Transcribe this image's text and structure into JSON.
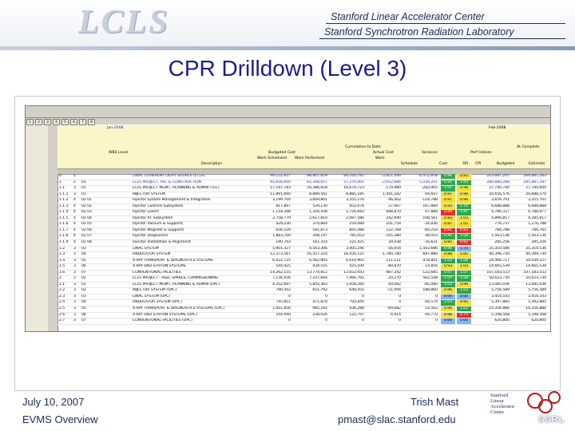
{
  "header": {
    "logo_text": "LCLS",
    "institution_line1": "Stanford Linear Accelerator Center",
    "institution_line2": "Stanford Synchrotron Radiation Laboratory"
  },
  "slide": {
    "title": "CPR Drilldown (Level 3)"
  },
  "spreadsheet": {
    "outline_levels": [
      "1",
      "2",
      "3",
      "4",
      "5",
      "6",
      "7",
      "8"
    ],
    "top_labels": {
      "cumulative_to_date": "Cumulative to Date",
      "at_complete": "At Complete",
      "wbs_level": "WBS Level",
      "description": "Description",
      "budgeted_cost": "Budgeted Cost",
      "actual_cost": "Actual Cost",
      "variance": "Variance",
      "perf_indices": "Perf Indices",
      "work_scheduled": "Work Scheduled",
      "work_performed": "Work Performed",
      "work": "Work",
      "schedule": "Schedule",
      "cost": "Cost",
      "spi": "SPI",
      "cpi": "CPI",
      "budgeted": "Budgeted",
      "estimate": "Estimate",
      "variance_at_complete": "Variance",
      "date_a": "Jan-2008",
      "date_b": "Feb-2008"
    },
    "rows": [
      {
        "num": "0",
        "lvl": "1",
        "wbs": "",
        "desc": "LINAC COHERENT LIGHT SOURCE (LCLS)",
        "bcws": "99,152,927",
        "bcwp": "88,807,859",
        "acwp": "89,316,785",
        "sv": "-3,821,496",
        "cv": "-6,472,858",
        "spi": "0.96",
        "cpi": "0.93",
        "bac": "263,887,207",
        "eac": "269,887,283",
        "kind": "blue",
        "c1": "g",
        "c2": "y"
      },
      {
        "num": "1",
        "lvl": "2",
        "wbs": "01",
        "desc": "LCLS PROJECT, PEC & CONSTRUCTION",
        "bcws": "65,656,640",
        "bcwp": "62,308,657",
        "acwp": "57,270,005",
        "sv": "-2,652,686",
        "cv": "5,030,201",
        "spi": "0.94",
        "cpi": "1.09",
        "bac": "280,880,288",
        "eac": "285,887,287",
        "kind": "blue",
        "c1": "g",
        "c2": "g"
      },
      {
        "num": "1.1",
        "lvl": "3",
        "wbs": "01",
        "desc": "LCLS PROJECT MGMT, PLANNING & ADMIN (TEC)",
        "bcws": "17,197,783",
        "bcwp": "16,386,818",
        "acwp": "16,670,723",
        "sv": "-179,989",
        "cv": "-283,905",
        "spi": "1.01",
        "cpi": "0.98",
        "bac": "27,740,740",
        "eac": "27,740,600",
        "kind": "plain",
        "c1": "g",
        "c2": "y"
      },
      {
        "num": "1.1.1",
        "lvl": "3",
        "wbs": "01",
        "desc": "INJECTOR SYSTEM",
        "bcws": "11,891,660",
        "bcwp": "8,889,561",
        "acwp": "8,885,185",
        "sv": "1,441,182",
        "cv": "64,607",
        "spi": "0.87",
        "cpi": "0.98",
        "bac": "20,656,576",
        "eac": "20,688,570",
        "kind": "plain",
        "c1": "y",
        "c2": "y"
      },
      {
        "num": "1.1.2",
        "lvl": "4",
        "wbs": "02 01",
        "desc": "Injector System Management & Integration",
        "bcws": "3,199,704",
        "bcwp": "3,069,801",
        "acwp": "3,355,576",
        "sv": "-46,402",
        "cv": "-118,788",
        "spi": "0.97",
        "cpi": "0.96",
        "bac": "3,659,701",
        "eac": "3,355,701",
        "kind": "plain",
        "c1": "y",
        "c2": "y"
      },
      {
        "num": "1.1.3",
        "lvl": "4",
        "wbs": "02 02",
        "desc": "Injector Controls Subsystem",
        "bcws": "817,897",
        "bcwp": "529,130",
        "acwp": "452,076",
        "sv": "27,067",
        "cv": "167,884",
        "spi": "0.93",
        "cpi": "1.35",
        "bac": "6,688,888",
        "eac": "6,688,888",
        "kind": "plain",
        "c1": "y",
        "c2": "g"
      },
      {
        "num": "1.1.4",
        "lvl": "4",
        "wbs": "02 03",
        "desc": "Injector Lasers",
        "bcws": "1,118,398",
        "bcwp": "1,316,438",
        "acwp": "1,726,683",
        "sv": "688,870",
        "cv": "67,888",
        "spi": "0.99",
        "cpi": "1.87",
        "bac": "4,786,327",
        "eac": "4,788,877",
        "kind": "plain",
        "c1": "rd",
        "c2": "g"
      },
      {
        "num": "1.1.5",
        "lvl": "4",
        "wbs": "02 04",
        "desc": "Injector RF Subsystem",
        "bcws": "2,758,779",
        "bcwp": "2,617,810",
        "acwp": "2,087,586",
        "sv": "242,690",
        "cv": "108,561",
        "spi": "0.83",
        "cpi": "1.03",
        "bac": "4,896,817",
        "eac": "4,285,817",
        "kind": "plain",
        "c1": "y",
        "c2": "y"
      },
      {
        "num": "1.1.6",
        "lvl": "4",
        "wbs": "02 05",
        "desc": "Injector Vacuum & Supports",
        "bcws": "429,230",
        "bcwp": "374,864",
        "acwp": "259,089",
        "sv": "101,754",
        "cv": "-34,836",
        "spi": "0.87",
        "cpi": "1.05",
        "bac": "776,737",
        "eac": "1,276,788",
        "kind": "plain",
        "c1": "y",
        "c2": "y"
      },
      {
        "num": "1.1.7",
        "lvl": "4",
        "wbs": "02 06",
        "desc": "Injector Magnets & Supports",
        "bcws": "656,529",
        "bcwp": "581,873",
        "acwp": "841,088",
        "sv": "122,768",
        "cv": "-60,218",
        "spi": "0.81",
        "cpi": "0.83",
        "bac": "784,788",
        "eac": "784,765",
        "kind": "plain",
        "c1": "rd",
        "c2": "rd"
      },
      {
        "num": "1.1.8",
        "lvl": "4",
        "wbs": "02 07",
        "desc": "Injector Diagnostics",
        "bcws": "1,883,700",
        "bcwp": "208,197",
        "acwp": "785,053",
        "sv": "-105,380",
        "cv": "-38,010",
        "spi": "0.90",
        "cpi": "1.08",
        "bac": "1,563,136",
        "eac": "1,563,136",
        "kind": "plain",
        "c1": "g",
        "c2": "g"
      },
      {
        "num": "1.1.9",
        "lvl": "4",
        "wbs": "02 08",
        "desc": "Injector Installation & Alignment",
        "bcws": "190,793",
        "bcwp": "161,354",
        "acwp": "225,425",
        "sv": "29,438",
        "cv": "-35,631",
        "spi": "0.85",
        "cpi": "0.82",
        "bac": "285,256",
        "eac": "285,256",
        "kind": "plain",
        "c1": "y",
        "c2": "rd"
      },
      {
        "num": "1.2",
        "lvl": "3",
        "wbs": "03",
        "desc": "LINAC SYSTEM",
        "bcws": "5,901,327",
        "bcwp": "4,563,306",
        "acwp": "3,405,246",
        "sv": "-56,054",
        "cv": "1,563,686",
        "spi": "0.98",
        "cpi": "1.75",
        "bac": "25,310,586",
        "eac": "25,310,536",
        "kind": "plain",
        "c1": "g",
        "c2": "bl"
      },
      {
        "num": "1.3",
        "lvl": "3",
        "wbs": "04",
        "desc": "UNDULATOR SYSTEM",
        "bcws": "12,373,567",
        "bcwp": "16,557,214",
        "acwp": "16,430,125",
        "sv": "-1,780,780",
        "cv": "687,880",
        "spi": "0.88",
        "cpi": "1.05",
        "bac": "40,396,730",
        "eac": "40,399,730",
        "kind": "plain",
        "c1": "y",
        "c2": "y"
      },
      {
        "num": "1.4",
        "lvl": "3",
        "wbs": "05",
        "desc": "X-RAY TRANSPORT & DIAGNOSTICS SYSTEMS",
        "bcws": "6,422,725",
        "bcwp": "6,562,905",
        "acwp": "6,610,905",
        "sv": "111,111",
        "cv": "478,801",
        "spi": "1.02",
        "cpi": "1.08",
        "bac": "24,466,727",
        "eac": "24,439,227",
        "kind": "plain",
        "c1": "g",
        "c2": "g"
      },
      {
        "num": "1.5",
        "lvl": "3",
        "wbs": "06",
        "desc": "X-RAY END STATION SYSTEMS",
        "bcws": "544,425",
        "bcwp": "434,555",
        "acwp": "425,100",
        "sv": "-80,870",
        "cv": "14,856",
        "spi": "0.93",
        "cpi": "1.03",
        "bac": "14,665,539",
        "eac": "14,665,539",
        "kind": "plain",
        "c1": "y",
        "c2": "y"
      },
      {
        "num": "1.6",
        "lvl": "3",
        "wbs": "07",
        "desc": "CONVENTIONAL FACILITIES",
        "bcws": "14,262,155",
        "bcwp": "13,774,812",
        "acwp": "13,652,043",
        "sv": "-487,342",
        "cv": "122,685",
        "spi": "0.97",
        "cpi": "1.07",
        "bac": "107,183,553",
        "eac": "107,183,553",
        "kind": "plain",
        "c1": "g",
        "c2": "g"
      },
      {
        "num": "2",
        "lvl": "2",
        "wbs": "02",
        "desc": "LCLS PROJECT - R&D, SPARES, COMMISSIONING",
        "bcws": "7,156,056",
        "bcwp": "7,107,604",
        "acwp": "7,466,765",
        "sv": "20,270",
        "cv": "562,548",
        "spi": "1.00",
        "cpi": "1.08",
        "bac": "50,623,730",
        "eac": "50,623,730",
        "kind": "plain",
        "c1": "g",
        "c2": "g"
      },
      {
        "num": "2.1",
        "lvl": "3",
        "wbs": "01",
        "desc": "LCLS PROJECT MGMT, PLANNING & ADMIN (OPC)",
        "bcws": "4,352,697",
        "bcwp": "5,842,363",
        "acwp": "5,958,260",
        "sv": "60,082",
        "cv": "-85,080",
        "spi": "1.03",
        "cpi": "0.99",
        "bac": "13,085,036",
        "eac": "13,085,036",
        "kind": "plain",
        "c1": "g",
        "c2": "y"
      },
      {
        "num": "2.2",
        "lvl": "3",
        "wbs": "02",
        "desc": "INJECTOR SYSTEM (OPC)",
        "bcws": "790,502",
        "bcwp": "651,792",
        "acwp": "648,455",
        "sv": "-51,094",
        "cv": "188,860",
        "spi": "0.96",
        "cpi": "1.03",
        "bac": "5,756,589",
        "eac": "5,756,589",
        "kind": "plain",
        "c1": "y",
        "c2": "g"
      },
      {
        "num": "2.3",
        "lvl": "3",
        "wbs": "03",
        "desc": "LINAC SYSTEM (OPC)",
        "bcws": "0",
        "bcwp": "0",
        "acwp": "0",
        "sv": "0",
        "cv": "0",
        "spi": "0.00",
        "cpi": "0.00",
        "bac": "3,454,543",
        "eac": "3,454,543",
        "kind": "plain",
        "c1": "bl",
        "c2": "bl"
      },
      {
        "num": "2.4",
        "lvl": "3",
        "wbs": "04",
        "desc": "UNDULATOR SYSTEM (OPC)",
        "bcws": "745,851",
        "bcwp": "471,870",
        "acwp": "793,440",
        "sv": "0",
        "cv": "-44,579",
        "spi": "1.03",
        "cpi": "0.95",
        "bac": "5,397,885",
        "eac": "5,392,885",
        "kind": "plain",
        "c1": "g",
        "c2": "y"
      },
      {
        "num": "2.5",
        "lvl": "3",
        "wbs": "05",
        "desc": "X-RAY TRANSPORT & DIAGNOSTICS SYSTEMS (OPC)",
        "bcws": "1,001,856",
        "bcwp": "985,292",
        "acwp": "936,288",
        "sv": "-69,682",
        "cv": "14,562",
        "spi": "0.94",
        "cpi": "1.02",
        "bac": "10,356,886",
        "eac": "10,356,886",
        "kind": "plain",
        "c1": "y",
        "c2": "g"
      },
      {
        "num": "2.6",
        "lvl": "3",
        "wbs": "06",
        "desc": "X-RAY END STATION SYSTEMS (OPC)",
        "bcws": "244,940",
        "bcwp": "238,026",
        "acwp": "122,797",
        "sv": "-4,914",
        "cv": "-44,770",
        "spi": "0.98",
        "cpi": "0.74",
        "bac": "5,348,568",
        "eac": "5,348,568",
        "kind": "plain",
        "c1": "y",
        "c2": "rd"
      },
      {
        "num": "2.7",
        "lvl": "3",
        "wbs": "07",
        "desc": "CONVENTIONAL FACILITIES (OPC)",
        "bcws": "0",
        "bcwp": "0",
        "acwp": "0",
        "sv": "0",
        "cv": "0",
        "spi": "0.00",
        "cpi": "0.00",
        "bac": "620,800",
        "eac": "620,800",
        "kind": "plain",
        "c1": "bl",
        "c2": "bl"
      }
    ]
  },
  "footer": {
    "date": "July 10, 2007",
    "subtitle": "EVMS Overview",
    "presenter": "Trish Mast",
    "email": "pmast@slac.stanford.edu",
    "logo_line1": "Stanford",
    "logo_line2": "Linear",
    "logo_line3": "Accelerator",
    "logo_line4": "Center",
    "logo_ssrl": "SSRL"
  },
  "colors": {
    "title": "#1c1c8c",
    "cpi_green": "#2fa84a",
    "cpi_yellow": "#f1e03a",
    "cpi_red": "#e03030",
    "cpi_blue": "#7fb8f0",
    "header_fill": "#fbf6c8"
  }
}
